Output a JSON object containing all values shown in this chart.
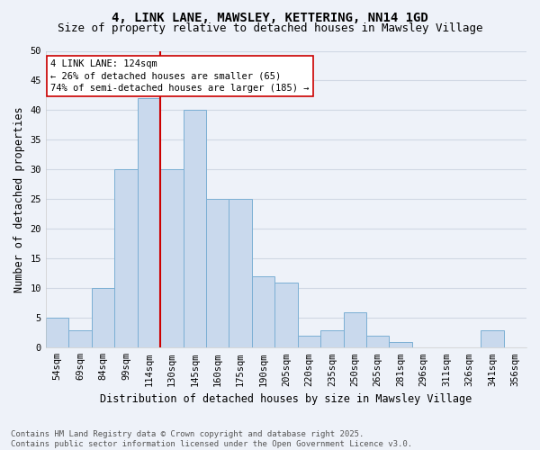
{
  "title_line1": "4, LINK LANE, MAWSLEY, KETTERING, NN14 1GD",
  "title_line2": "Size of property relative to detached houses in Mawsley Village",
  "xlabel": "Distribution of detached houses by size in Mawsley Village",
  "ylabel": "Number of detached properties",
  "footer_line1": "Contains HM Land Registry data © Crown copyright and database right 2025.",
  "footer_line2": "Contains public sector information licensed under the Open Government Licence v3.0.",
  "categories": [
    "54sqm",
    "69sqm",
    "84sqm",
    "99sqm",
    "114sqm",
    "130sqm",
    "145sqm",
    "160sqm",
    "175sqm",
    "190sqm",
    "205sqm",
    "220sqm",
    "235sqm",
    "250sqm",
    "265sqm",
    "281sqm",
    "296sqm",
    "311sqm",
    "326sqm",
    "341sqm",
    "356sqm"
  ],
  "values": [
    5,
    3,
    10,
    30,
    42,
    30,
    40,
    25,
    25,
    12,
    11,
    2,
    3,
    6,
    2,
    1,
    0,
    0,
    0,
    3,
    0
  ],
  "bar_color": "#c9d9ed",
  "bar_edge_color": "#7bafd4",
  "grid_color": "#d0d8e4",
  "background_color": "#eef2f9",
  "vline_x": 4.5,
  "vline_color": "#cc0000",
  "annotation_text": "4 LINK LANE: 124sqm\n← 26% of detached houses are smaller (65)\n74% of semi-detached houses are larger (185) →",
  "annotation_box_color": "#ffffff",
  "annotation_border_color": "#cc0000",
  "ylim": [
    0,
    50
  ],
  "yticks": [
    0,
    5,
    10,
    15,
    20,
    25,
    30,
    35,
    40,
    45,
    50
  ],
  "title_fontsize": 10,
  "subtitle_fontsize": 9,
  "axis_label_fontsize": 8.5,
  "tick_fontsize": 7.5,
  "annotation_fontsize": 7.5,
  "footer_fontsize": 6.5
}
